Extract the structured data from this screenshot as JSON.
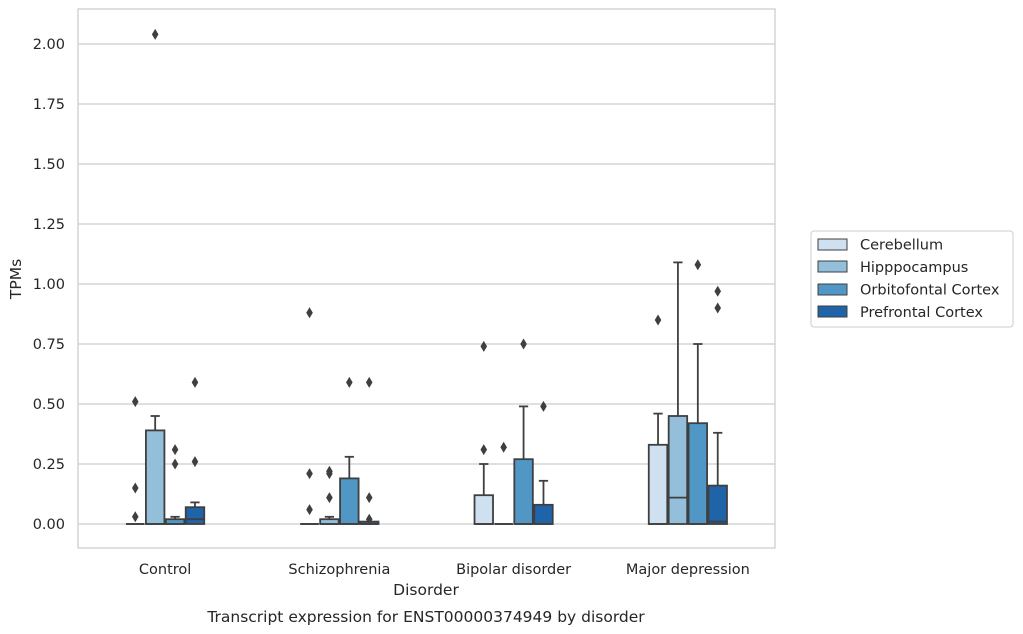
{
  "chart_data": {
    "type": "box",
    "title": "",
    "caption": "Transcript expression for ENST00000374949 by disorder",
    "xlabel": "Disorder",
    "ylabel": "TPMs",
    "ylim": [
      -0.1,
      2.15
    ],
    "yticks": [
      "0.00",
      "0.25",
      "0.50",
      "0.75",
      "1.00",
      "1.25",
      "1.50",
      "1.75",
      "2.00"
    ],
    "grid": true,
    "legend_position": "right",
    "categories": [
      "Control",
      "Schizophrenia",
      "Bipolar disorder",
      "Major depression"
    ],
    "series": [
      {
        "name": "Cerebellum",
        "color": "#cfe1f0",
        "boxes": [
          {
            "q1": 0.0,
            "median": 0.0,
            "q3": 0.0,
            "low": 0.0,
            "high": 0.0,
            "outliers": [
              0.03,
              0.15,
              0.51
            ]
          },
          {
            "q1": 0.0,
            "median": 0.0,
            "q3": 0.0,
            "low": 0.0,
            "high": 0.0,
            "outliers": [
              0.06,
              0.21,
              0.88
            ]
          },
          {
            "q1": 0.0,
            "median": 0.0,
            "q3": 0.12,
            "low": 0.0,
            "high": 0.25,
            "outliers": [
              0.31,
              0.74
            ]
          },
          {
            "q1": 0.0,
            "median": 0.0,
            "q3": 0.33,
            "low": 0.0,
            "high": 0.46,
            "outliers": [
              0.85
            ]
          }
        ]
      },
      {
        "name": "Hipppocampus",
        "color": "#93bfdb",
        "boxes": [
          {
            "q1": 0.0,
            "median": 0.0,
            "q3": 0.39,
            "low": 0.0,
            "high": 0.45,
            "outliers": [
              2.04
            ]
          },
          {
            "q1": 0.0,
            "median": 0.0,
            "q3": 0.02,
            "low": 0.0,
            "high": 0.03,
            "outliers": [
              0.11,
              0.21,
              0.22
            ]
          },
          {
            "q1": 0.0,
            "median": 0.0,
            "q3": 0.0,
            "low": 0.0,
            "high": 0.0,
            "outliers": [
              0.32
            ]
          },
          {
            "q1": 0.0,
            "median": 0.11,
            "q3": 0.45,
            "low": 0.0,
            "high": 1.09,
            "outliers": []
          }
        ]
      },
      {
        "name": "Orbitofontal Cortex",
        "color": "#5097c5",
        "boxes": [
          {
            "q1": 0.0,
            "median": 0.0,
            "q3": 0.02,
            "low": 0.0,
            "high": 0.03,
            "outliers": [
              0.25,
              0.31
            ]
          },
          {
            "q1": 0.0,
            "median": 0.0,
            "q3": 0.19,
            "low": 0.0,
            "high": 0.28,
            "outliers": [
              0.59
            ]
          },
          {
            "q1": 0.0,
            "median": 0.0,
            "q3": 0.27,
            "low": 0.0,
            "high": 0.49,
            "outliers": [
              0.75
            ]
          },
          {
            "q1": 0.0,
            "median": 0.0,
            "q3": 0.42,
            "low": 0.0,
            "high": 0.75,
            "outliers": [
              1.08
            ]
          }
        ]
      },
      {
        "name": "Prefrontal Cortex",
        "color": "#1f64a8",
        "boxes": [
          {
            "q1": 0.0,
            "median": 0.02,
            "q3": 0.07,
            "low": 0.0,
            "high": 0.09,
            "outliers": [
              0.26,
              0.59
            ]
          },
          {
            "q1": 0.0,
            "median": 0.0,
            "q3": 0.01,
            "low": 0.0,
            "high": 0.01,
            "outliers": [
              0.02,
              0.11,
              0.59
            ]
          },
          {
            "q1": 0.0,
            "median": 0.0,
            "q3": 0.08,
            "low": 0.0,
            "high": 0.18,
            "outliers": [
              0.49
            ]
          },
          {
            "q1": 0.0,
            "median": 0.01,
            "q3": 0.16,
            "low": 0.0,
            "high": 0.38,
            "outliers": [
              0.9,
              0.97
            ]
          }
        ]
      }
    ]
  },
  "legend": {
    "items": [
      {
        "label": "Cerebellum"
      },
      {
        "label": "Hipppocampus"
      },
      {
        "label": "Orbitofontal Cortex"
      },
      {
        "label": "Prefrontal Cortex"
      }
    ]
  }
}
